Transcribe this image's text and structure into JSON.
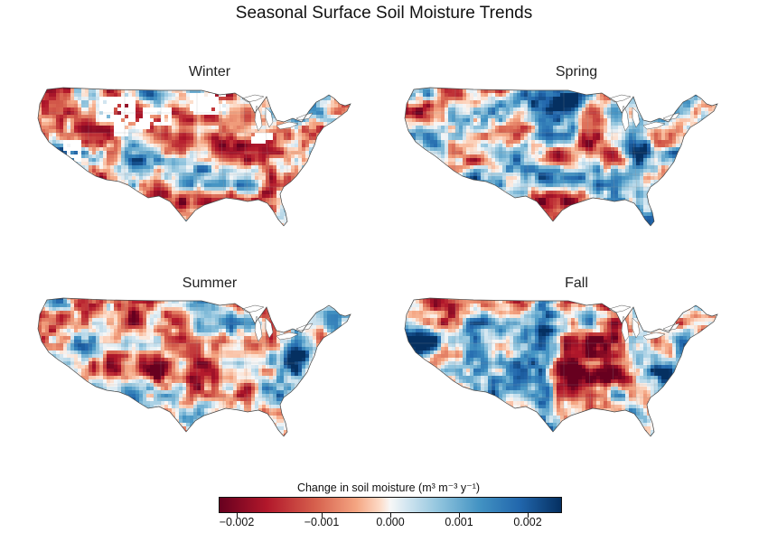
{
  "figure": {
    "title": "Seasonal Surface Soil Moisture Trends"
  },
  "panels": [
    {
      "season": "Winter"
    },
    {
      "season": "Spring"
    },
    {
      "season": "Summer"
    },
    {
      "season": "Fall"
    }
  ],
  "colorbar": {
    "label": "Change in soil moisture (m³ m⁻³ y⁻¹)",
    "ticks": [
      "−0.002",
      "−0.001",
      "0.000",
      "0.001",
      "0.002"
    ],
    "range": [
      -0.0025,
      0.0025
    ],
    "colormap": "diverging red-white-blue",
    "negative_color": "#b2182b",
    "neutral_color": "#f7f7f7",
    "positive_color": "#2166ac"
  },
  "region": "Contiguous United States",
  "no_data_color": "#ffffff"
}
